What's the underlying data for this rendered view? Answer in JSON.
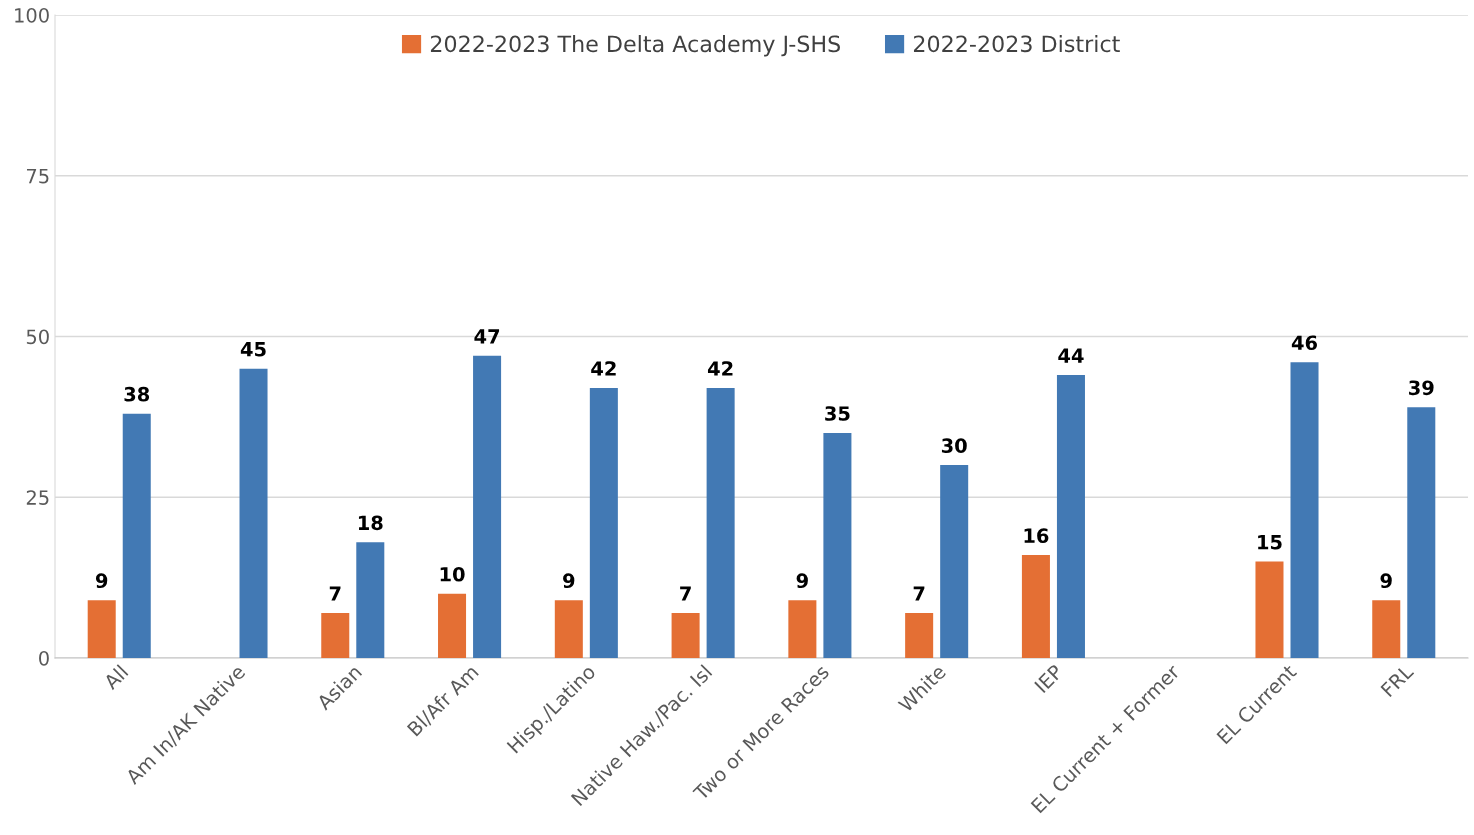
{
  "chart_data": {
    "type": "bar",
    "categories": [
      "All",
      "Am In/AK Native",
      "Asian",
      "Bl/Afr Am",
      "Hisp./Latino",
      "Native Haw./Pac. Isl",
      "Two or More Races",
      "White",
      "IEP",
      "EL Current + Former",
      "EL Current",
      "FRL"
    ],
    "series": [
      {
        "name": "2022-2023 The Delta Academy J-SHS",
        "color": "#e46f34",
        "values": [
          9,
          null,
          7,
          10,
          9,
          7,
          9,
          7,
          16,
          null,
          15,
          9
        ]
      },
      {
        "name": "2022-2023 District",
        "color": "#4279b4",
        "values": [
          38,
          45,
          18,
          47,
          42,
          42,
          35,
          30,
          44,
          null,
          46,
          39
        ]
      }
    ],
    "ylim": [
      0,
      100
    ],
    "yticks": [
      0,
      25,
      50,
      75,
      100
    ],
    "grid": "y",
    "legend": "top",
    "data_labels": true
  }
}
